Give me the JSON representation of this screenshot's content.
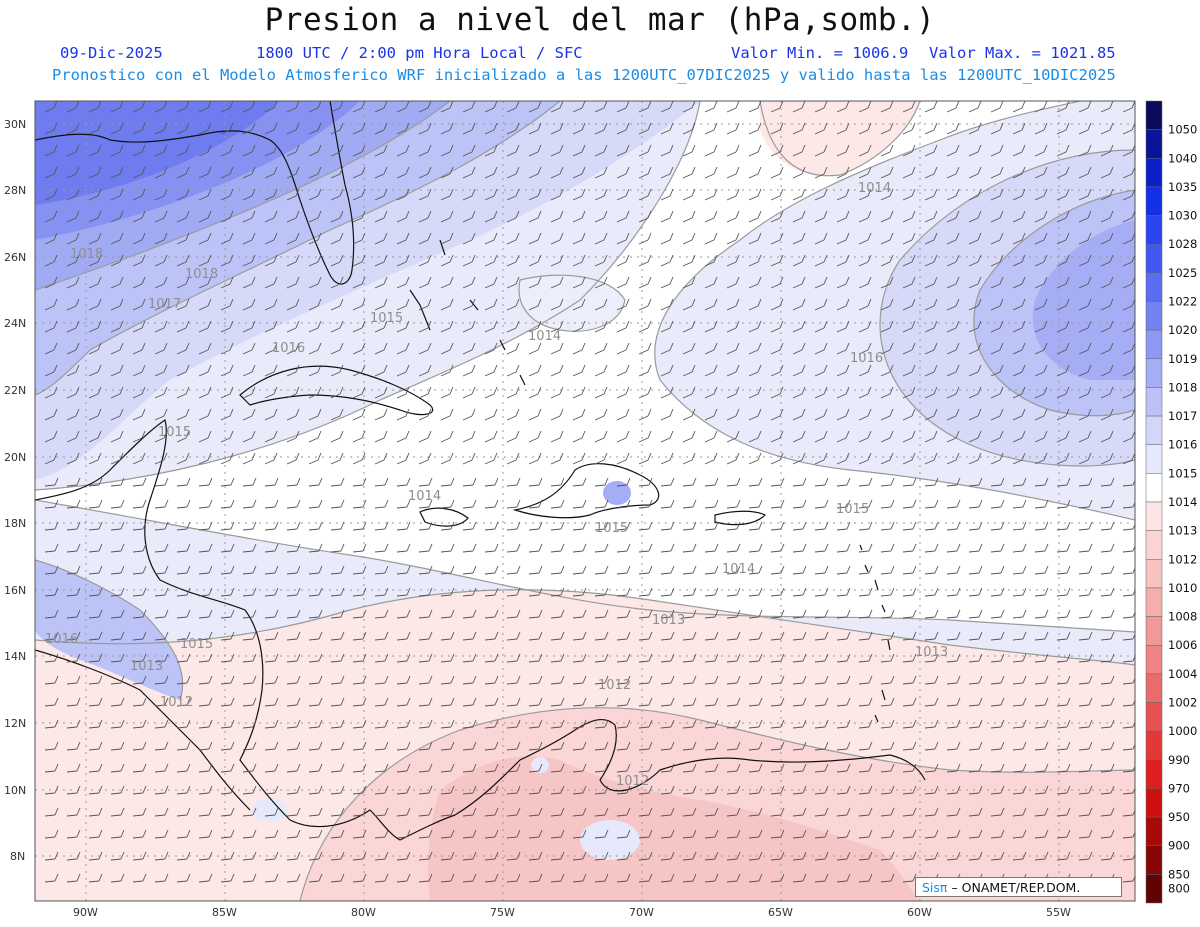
{
  "header": {
    "title": "Presion a nivel del mar (hPa,somb.)",
    "date": "09-Dic-2025",
    "time": "1800 UTC / 2:00 pm Hora Local / SFC",
    "min_label": "Valor Min. = 1006.9",
    "max_label": "Valor Max. = 1021.85",
    "model_line": "Pronostico con el Modelo Atmosferico WRF inicializado a las 1200UTC_07DIC2025 y valido hasta las  1200UTC_10DIC2025"
  },
  "axes": {
    "lon_labels": [
      "90W",
      "85W",
      "80W",
      "75W",
      "70W",
      "65W",
      "60W",
      "55W"
    ],
    "lat_labels": [
      "30N",
      "28N",
      "26N",
      "24N",
      "22N",
      "20N",
      "18N",
      "16N",
      "14N",
      "12N",
      "10N",
      "8N"
    ]
  },
  "colorbar": {
    "levels": [
      "1050",
      "1040",
      "1035",
      "1030",
      "1028",
      "1025",
      "1022",
      "1020",
      "1019",
      "1018",
      "1017",
      "1016",
      "1015",
      "1014",
      "1013",
      "1012",
      "1010",
      "1008",
      "1006",
      "1004",
      "1002",
      "1000",
      "990",
      "970",
      "950",
      "900",
      "850",
      "800"
    ],
    "colors": [
      "#0b0b5c",
      "#0a1496",
      "#0c20c8",
      "#1230e6",
      "#2a45f0",
      "#4257ef",
      "#5b6df0",
      "#7282f1",
      "#8c98f3",
      "#a4adf5",
      "#bcc2f7",
      "#d2d6fa",
      "#e6e8fc",
      "#ffffff",
      "#fde5e5",
      "#fad3d3",
      "#f7c2c2",
      "#f4aeae",
      "#f19999",
      "#ee8484",
      "#ea6b6b",
      "#e65252",
      "#e23838",
      "#de1f1f",
      "#cc0f0f",
      "#a80a0a",
      "#860606",
      "#600303"
    ]
  },
  "contour_labels": [
    "1018",
    "1018",
    "1017",
    "1015",
    "1016",
    "1014",
    "1014",
    "1016",
    "1015",
    "1014",
    "1015",
    "1015",
    "1014",
    "1013",
    "1013",
    "1016",
    "1015",
    "1013",
    "1012",
    "1012",
    "1012"
  ],
  "credit": {
    "brand": "Sisπ",
    "text": "– ONAMET/REP.DOM."
  }
}
